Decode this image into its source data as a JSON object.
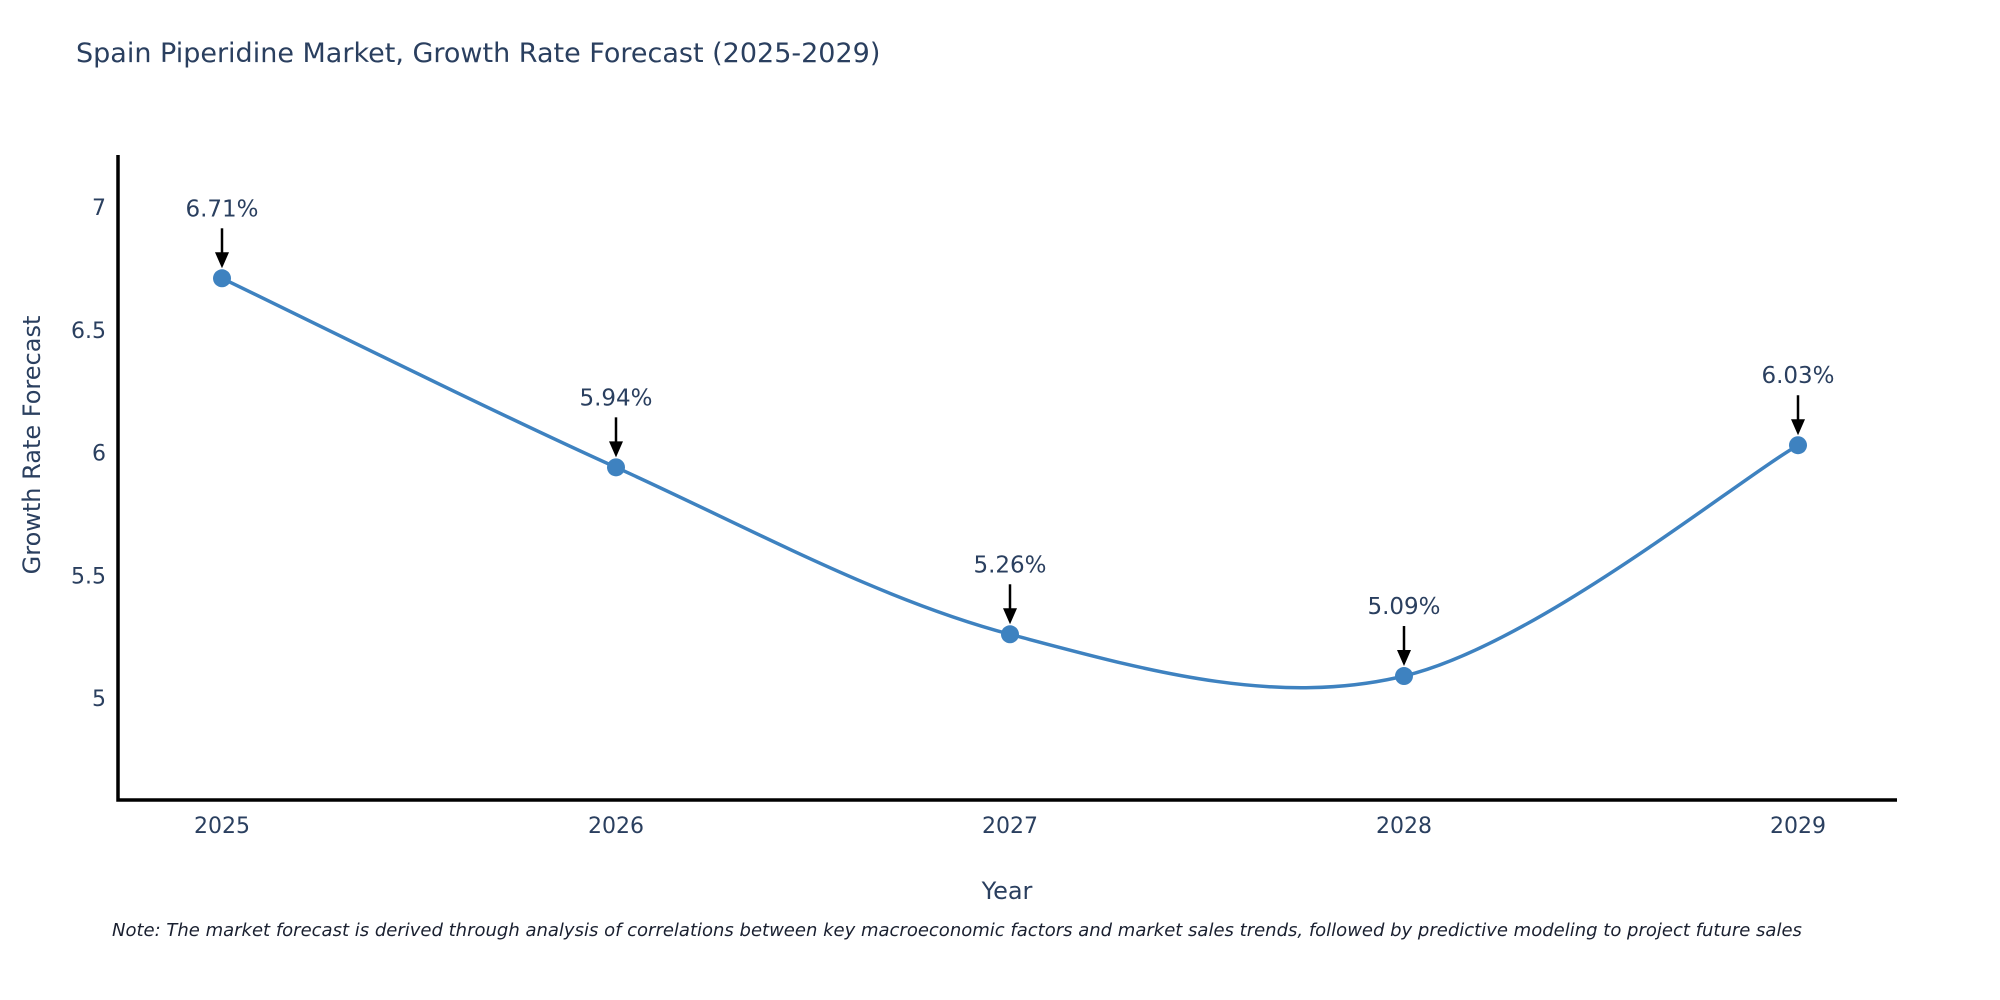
{
  "title": "Spain Piperidine Market, Growth Rate Forecast (2025-2029)",
  "note": "Note: The market forecast is derived through analysis of correlations between key macroeconomic factors and market sales trends, followed by predictive modeling to project future sales",
  "chart_data": {
    "type": "line",
    "title": "Spain Piperidine Market, Growth Rate Forecast (2025-2029)",
    "categories": [
      "2025",
      "2026",
      "2027",
      "2028",
      "2029"
    ],
    "values": [
      6.71,
      5.94,
      5.26,
      5.09,
      6.03
    ],
    "point_labels": [
      "6.71%",
      "5.94%",
      "5.26%",
      "5.09%",
      "6.03%"
    ],
    "xlabel": "Year",
    "ylabel": "Growth Rate Forecast",
    "yticks": [
      5,
      5.5,
      6,
      6.5,
      7
    ],
    "ylim": [
      4.585,
      7.2
    ],
    "grid": false,
    "legend": false,
    "smooth_spline": true,
    "annotation_arrows": true,
    "colors": {
      "line": "#3e82c0",
      "marker": "#3e82c0",
      "axis": "#000000",
      "text": "#2a3f5f",
      "annotation_arrow": "#000000",
      "note": "#1a2030"
    }
  }
}
